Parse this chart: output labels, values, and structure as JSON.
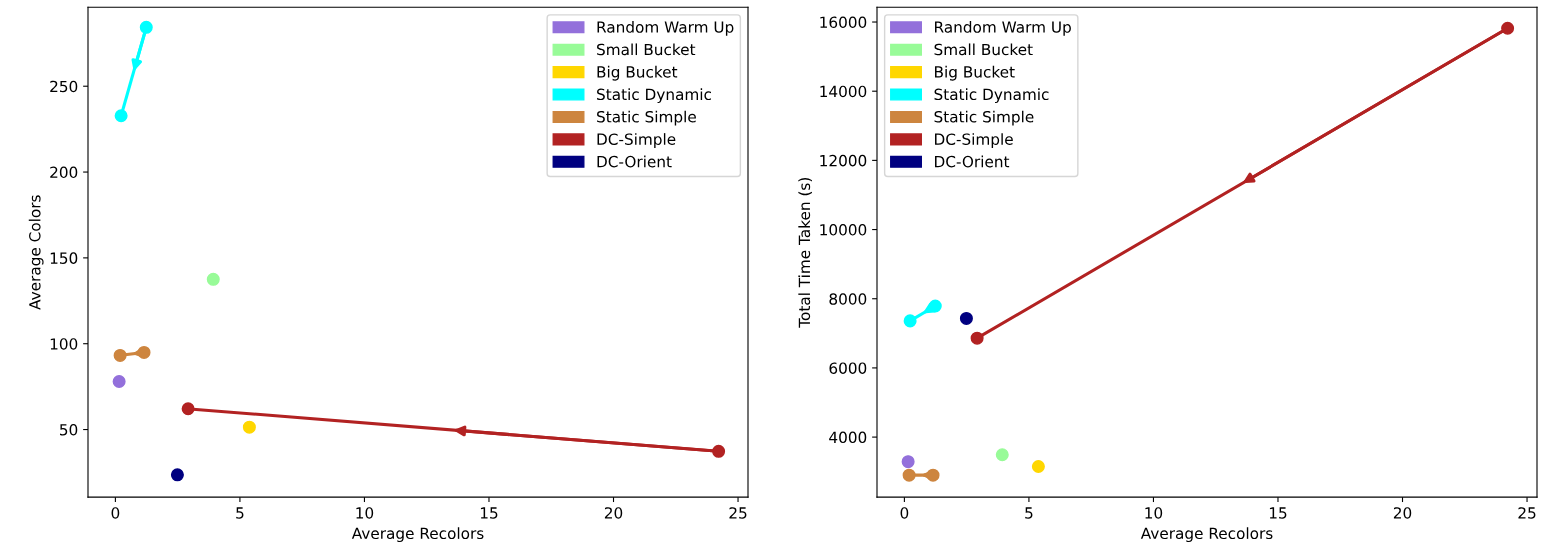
{
  "chart_data": [
    {
      "type": "scatter",
      "xlabel": "Average Recolors",
      "ylabel": "Average Colors",
      "xlim": [
        -1.1,
        25.4
      ],
      "xticks": [
        0,
        5,
        10,
        15,
        20,
        25
      ],
      "ylim": [
        10.6,
        296
      ],
      "yticks": [
        50,
        100,
        150,
        200,
        250
      ],
      "grid": false,
      "legend": "top right",
      "marker": "circle",
      "series": [
        {
          "name": "Random Warm Up",
          "color": "#9370db",
          "x": [
            0.15
          ],
          "values": [
            78
          ]
        },
        {
          "name": "Small Bucket",
          "color": "#98fb98",
          "x": [
            3.93
          ],
          "values": [
            137.5
          ]
        },
        {
          "name": "Big Bucket",
          "color": "#ffd700",
          "x": [
            5.38
          ],
          "values": [
            51.4
          ]
        },
        {
          "name": "Static Dynamic",
          "type": "line",
          "color": "#00ffff",
          "x": [
            1.24,
            0.23
          ],
          "values": [
            284.3,
            232.8
          ]
        },
        {
          "name": "Static Simple",
          "type": "line",
          "color": "#cd853f",
          "x": [
            1.15,
            0.19
          ],
          "values": [
            94.9,
            93.2
          ]
        },
        {
          "name": "DC-Simple",
          "type": "line",
          "color": "#b22222",
          "x": [
            24.22,
            2.92
          ],
          "values": [
            37.3,
            62.1
          ]
        },
        {
          "name": "DC-Orient",
          "color": "#000080",
          "x": [
            2.49
          ],
          "values": [
            23.6
          ]
        }
      ]
    },
    {
      "type": "scatter",
      "xlabel": "Average Recolors",
      "ylabel": "Total Time Taken (s)",
      "xlim": [
        -1.1,
        25.4
      ],
      "xticks": [
        0,
        5,
        10,
        15,
        20,
        25
      ],
      "ylim": [
        2263,
        16427
      ],
      "yticks": [
        4000,
        6000,
        8000,
        10000,
        12000,
        14000,
        16000
      ],
      "grid": false,
      "legend": "top left",
      "marker": "circle",
      "series": [
        {
          "name": "Random Warm Up",
          "color": "#9370db",
          "x": [
            0.15
          ],
          "values": [
            3290
          ]
        },
        {
          "name": "Small Bucket",
          "color": "#98fb98",
          "x": [
            3.93
          ],
          "values": [
            3490
          ]
        },
        {
          "name": "Big Bucket",
          "color": "#ffd700",
          "x": [
            5.38
          ],
          "values": [
            3150
          ]
        },
        {
          "name": "Static Dynamic",
          "type": "line",
          "color": "#00ffff",
          "x": [
            1.24,
            0.23
          ],
          "values": [
            7790,
            7360
          ]
        },
        {
          "name": "Static Simple",
          "type": "line",
          "color": "#cd853f",
          "x": [
            1.15,
            0.19
          ],
          "values": [
            2900,
            2900
          ]
        },
        {
          "name": "DC-Simple",
          "type": "line",
          "color": "#b22222",
          "x": [
            24.22,
            2.92
          ],
          "values": [
            15820,
            6860
          ]
        },
        {
          "name": "DC-Orient",
          "color": "#000080",
          "x": [
            2.49
          ],
          "values": [
            7430
          ]
        }
      ]
    }
  ]
}
